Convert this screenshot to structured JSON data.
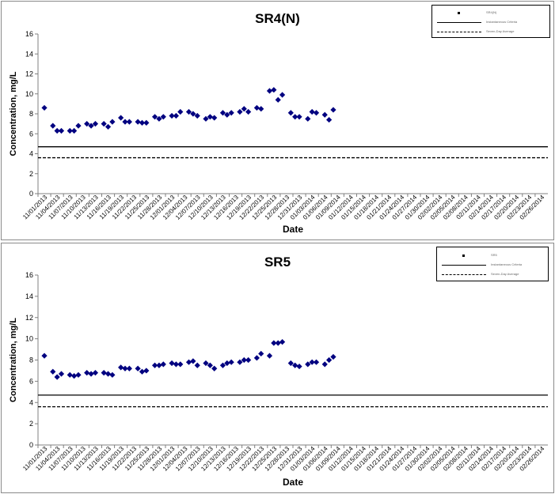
{
  "chart_data": [
    {
      "type": "scatter",
      "title": "SR4(N)",
      "xlabel": "Date",
      "ylabel": "Concentration, mg/L",
      "ylim": [
        0,
        16
      ],
      "yticks": [
        0,
        2,
        4,
        6,
        8,
        10,
        12,
        14,
        16
      ],
      "xtick_labels": [
        "11/01/2013",
        "11/04/2013",
        "11/07/2013",
        "11/10/2013",
        "11/13/2013",
        "11/16/2013",
        "11/19/2013",
        "11/22/2013",
        "11/25/2013",
        "11/28/2013",
        "12/01/2013",
        "12/04/2013",
        "12/07/2013",
        "12/10/2013",
        "12/13/2013",
        "12/16/2013",
        "12/19/2013",
        "12/22/2013",
        "12/25/2013",
        "12/28/2013",
        "12/31/2013",
        "01/03/2014",
        "01/06/2014",
        "01/09/2014",
        "01/12/2014",
        "01/15/2014",
        "01/18/2014",
        "01/21/2014",
        "01/24/2014",
        "01/27/2014",
        "01/30/2014",
        "02/02/2014",
        "02/05/2014",
        "02/08/2014",
        "02/11/2014",
        "02/14/2014",
        "02/17/2014",
        "02/20/2014",
        "02/23/2014",
        "02/26/2014"
      ],
      "series": [
        {
          "marker": "diamond",
          "color": "#000080",
          "points": [
            [
              "11/01/2013",
              8.6
            ],
            [
              "11/03/2013",
              6.8
            ],
            [
              "11/04/2013",
              6.3
            ],
            [
              "11/05/2013",
              6.3
            ],
            [
              "11/07/2013",
              6.3
            ],
            [
              "11/08/2013",
              6.3
            ],
            [
              "11/09/2013",
              6.8
            ],
            [
              "11/11/2013",
              7.0
            ],
            [
              "11/12/2013",
              6.8
            ],
            [
              "11/13/2013",
              7.0
            ],
            [
              "11/15/2013",
              7.0
            ],
            [
              "11/16/2013",
              6.7
            ],
            [
              "11/17/2013",
              7.2
            ],
            [
              "11/19/2013",
              7.6
            ],
            [
              "11/20/2013",
              7.2
            ],
            [
              "11/21/2013",
              7.2
            ],
            [
              "11/23/2013",
              7.2
            ],
            [
              "11/24/2013",
              7.1
            ],
            [
              "11/25/2013",
              7.1
            ],
            [
              "11/27/2013",
              7.7
            ],
            [
              "11/28/2013",
              7.5
            ],
            [
              "11/29/2013",
              7.7
            ],
            [
              "12/01/2013",
              7.8
            ],
            [
              "12/02/2013",
              7.8
            ],
            [
              "12/03/2013",
              8.2
            ],
            [
              "12/05/2013",
              8.2
            ],
            [
              "12/06/2013",
              8.0
            ],
            [
              "12/07/2013",
              7.8
            ],
            [
              "12/09/2013",
              7.5
            ],
            [
              "12/10/2013",
              7.7
            ],
            [
              "12/11/2013",
              7.6
            ],
            [
              "12/13/2013",
              8.1
            ],
            [
              "12/14/2013",
              7.9
            ],
            [
              "12/15/2013",
              8.1
            ],
            [
              "12/17/2013",
              8.2
            ],
            [
              "12/18/2013",
              8.5
            ],
            [
              "12/19/2013",
              8.2
            ],
            [
              "12/21/2013",
              8.6
            ],
            [
              "12/22/2013",
              8.5
            ],
            [
              "12/24/2013",
              10.3
            ],
            [
              "12/25/2013",
              10.4
            ],
            [
              "12/26/2013",
              9.4
            ],
            [
              "12/27/2013",
              9.9
            ],
            [
              "12/29/2013",
              8.1
            ],
            [
              "12/30/2013",
              7.7
            ],
            [
              "12/31/2013",
              7.7
            ],
            [
              "01/02/2014",
              7.5
            ],
            [
              "01/03/2014",
              8.2
            ],
            [
              "01/04/2014",
              8.1
            ],
            [
              "01/06/2014",
              7.9
            ],
            [
              "01/07/2014",
              7.4
            ],
            [
              "01/08/2014",
              8.4
            ]
          ]
        }
      ],
      "reference_lines": [
        {
          "style": "solid",
          "value": 4.7
        },
        {
          "style": "dashed",
          "value": 3.6
        }
      ],
      "legend": {
        "placement": "top-right",
        "entries": [
          {
            "style": "marker",
            "text": "SR4(N)"
          },
          {
            "style": "solid",
            "text": "Instantaneous Criteria"
          },
          {
            "style": "dashed",
            "text": "Seven-Day Average"
          }
        ]
      }
    },
    {
      "type": "scatter",
      "title": "SR5",
      "xlabel": "Date",
      "ylabel": "Concentration, mg/L",
      "ylim": [
        0,
        16
      ],
      "yticks": [
        0,
        2,
        4,
        6,
        8,
        10,
        12,
        14,
        16
      ],
      "xtick_labels": [
        "11/01/2013",
        "11/04/2013",
        "11/07/2013",
        "11/10/2013",
        "11/13/2013",
        "11/16/2013",
        "11/19/2013",
        "11/22/2013",
        "11/25/2013",
        "11/28/2013",
        "12/01/2013",
        "12/04/2013",
        "12/07/2013",
        "12/10/2013",
        "12/13/2013",
        "12/16/2013",
        "12/19/2013",
        "12/22/2013",
        "12/25/2013",
        "12/28/2013",
        "12/31/2013",
        "01/03/2014",
        "01/06/2014",
        "01/09/2014",
        "01/12/2014",
        "01/15/2014",
        "01/18/2014",
        "01/21/2014",
        "01/24/2014",
        "01/27/2014",
        "01/30/2014",
        "02/02/2014",
        "02/05/2014",
        "02/08/2014",
        "02/11/2014",
        "02/14/2014",
        "02/17/2014",
        "02/20/2014",
        "02/23/2014",
        "02/26/2014"
      ],
      "series": [
        {
          "marker": "diamond",
          "color": "#000080",
          "points": [
            [
              "11/01/2013",
              8.4
            ],
            [
              "11/03/2013",
              6.9
            ],
            [
              "11/04/2013",
              6.4
            ],
            [
              "11/05/2013",
              6.7
            ],
            [
              "11/07/2013",
              6.6
            ],
            [
              "11/08/2013",
              6.5
            ],
            [
              "11/09/2013",
              6.6
            ],
            [
              "11/11/2013",
              6.8
            ],
            [
              "11/12/2013",
              6.7
            ],
            [
              "11/13/2013",
              6.8
            ],
            [
              "11/15/2013",
              6.8
            ],
            [
              "11/16/2013",
              6.7
            ],
            [
              "11/17/2013",
              6.6
            ],
            [
              "11/19/2013",
              7.3
            ],
            [
              "11/20/2013",
              7.2
            ],
            [
              "11/21/2013",
              7.2
            ],
            [
              "11/23/2013",
              7.2
            ],
            [
              "11/24/2013",
              6.9
            ],
            [
              "11/25/2013",
              7.0
            ],
            [
              "11/27/2013",
              7.5
            ],
            [
              "11/28/2013",
              7.5
            ],
            [
              "11/29/2013",
              7.6
            ],
            [
              "12/01/2013",
              7.7
            ],
            [
              "12/02/2013",
              7.6
            ],
            [
              "12/03/2013",
              7.6
            ],
            [
              "12/05/2013",
              7.8
            ],
            [
              "12/06/2013",
              7.9
            ],
            [
              "12/07/2013",
              7.5
            ],
            [
              "12/09/2013",
              7.7
            ],
            [
              "12/10/2013",
              7.5
            ],
            [
              "12/11/2013",
              7.2
            ],
            [
              "12/13/2013",
              7.5
            ],
            [
              "12/14/2013",
              7.7
            ],
            [
              "12/15/2013",
              7.8
            ],
            [
              "12/17/2013",
              7.8
            ],
            [
              "12/18/2013",
              8.0
            ],
            [
              "12/19/2013",
              8.0
            ],
            [
              "12/21/2013",
              8.2
            ],
            [
              "12/22/2013",
              8.6
            ],
            [
              "12/24/2013",
              8.4
            ],
            [
              "12/25/2013",
              9.6
            ],
            [
              "12/26/2013",
              9.6
            ],
            [
              "12/27/2013",
              9.7
            ],
            [
              "12/29/2013",
              7.7
            ],
            [
              "12/30/2013",
              7.5
            ],
            [
              "12/31/2013",
              7.4
            ],
            [
              "01/02/2014",
              7.6
            ],
            [
              "01/03/2014",
              7.8
            ],
            [
              "01/04/2014",
              7.8
            ],
            [
              "01/06/2014",
              7.6
            ],
            [
              "01/07/2014",
              8.0
            ],
            [
              "01/08/2014",
              8.3
            ]
          ]
        }
      ],
      "reference_lines": [
        {
          "style": "solid",
          "value": 4.7
        },
        {
          "style": "dashed",
          "value": 3.6
        }
      ],
      "legend": {
        "placement": "top-right",
        "entries": [
          {
            "style": "marker",
            "text": "SR5"
          },
          {
            "style": "solid",
            "text": "Instantaneous Criteria"
          },
          {
            "style": "dashed",
            "text": "Seven-Day Average"
          }
        ]
      }
    }
  ]
}
